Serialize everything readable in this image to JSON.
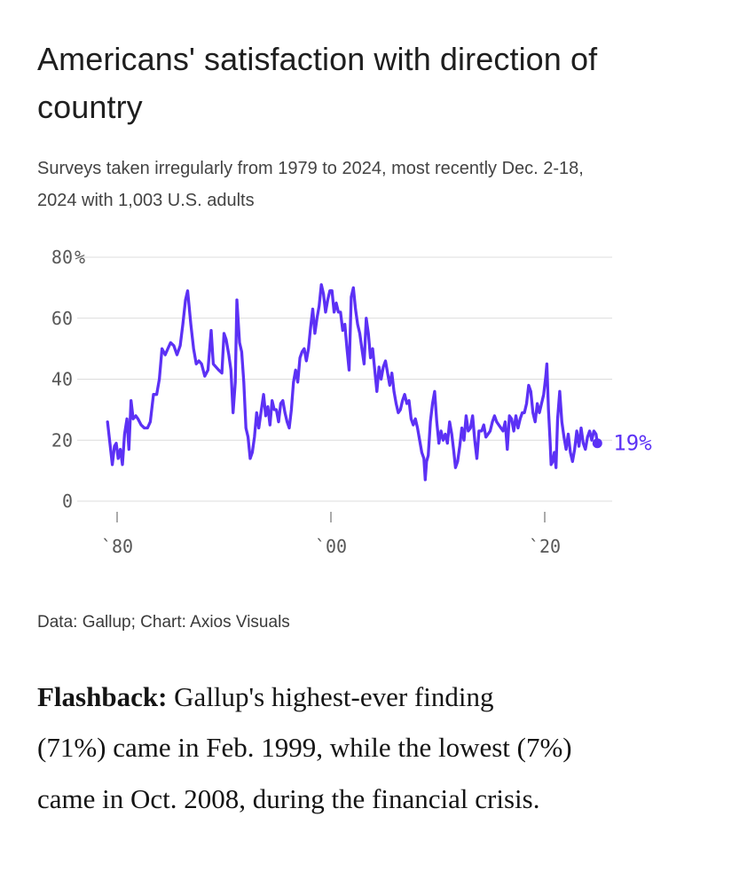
{
  "header": {
    "title": "Americans' satisfaction with direction of\ncountry",
    "subtitle": "Surveys taken irregularly from 1979 to 2024, most recently Dec. 2-18,\n2024 with 1,003 U.S. adults"
  },
  "chart_data": {
    "type": "line",
    "title": "Americans' satisfaction with direction of country",
    "unit": "%",
    "ylim": [
      0,
      80
    ],
    "x_range_years": [
      1979,
      2025
    ],
    "grid": true,
    "grid_color": "#dcdcdc",
    "tick_color": "#585858",
    "accent_color": "#5c31f5",
    "end_label": "19%",
    "end_value": 19,
    "y_ticks": [
      {
        "value": 80,
        "label": "80%"
      },
      {
        "value": 60,
        "label": "60"
      },
      {
        "value": 40,
        "label": "40"
      },
      {
        "value": 20,
        "label": "20"
      },
      {
        "value": 0,
        "label": "0"
      }
    ],
    "x_ticks": [
      {
        "value": 1980,
        "label": "`80"
      },
      {
        "value": 2000,
        "label": "`00"
      },
      {
        "value": 2020,
        "label": "`20"
      }
    ],
    "series": [
      {
        "name": "Satisfied with direction of country (%)",
        "color": "#5c31f5",
        "points": [
          [
            1979.1,
            26
          ],
          [
            1979.33,
            19
          ],
          [
            1979.55,
            12
          ],
          [
            1979.75,
            18
          ],
          [
            1979.92,
            19
          ],
          [
            1980.1,
            14
          ],
          [
            1980.3,
            17
          ],
          [
            1980.5,
            12
          ],
          [
            1980.7,
            22
          ],
          [
            1980.92,
            27
          ],
          [
            1981.1,
            17
          ],
          [
            1981.3,
            33
          ],
          [
            1981.5,
            27
          ],
          [
            1981.75,
            28
          ],
          [
            1981.95,
            27
          ],
          [
            1982.25,
            25
          ],
          [
            1982.55,
            24
          ],
          [
            1982.85,
            24
          ],
          [
            1983.1,
            26
          ],
          [
            1983.4,
            35
          ],
          [
            1983.7,
            35
          ],
          [
            1983.95,
            40
          ],
          [
            1984.2,
            50
          ],
          [
            1984.5,
            48
          ],
          [
            1984.75,
            50
          ],
          [
            1985.0,
            52
          ],
          [
            1985.3,
            51
          ],
          [
            1985.6,
            48
          ],
          [
            1985.9,
            51
          ],
          [
            1986.15,
            58
          ],
          [
            1986.4,
            66
          ],
          [
            1986.6,
            69
          ],
          [
            1986.9,
            58
          ],
          [
            1987.15,
            50
          ],
          [
            1987.4,
            45
          ],
          [
            1987.65,
            46
          ],
          [
            1987.9,
            45
          ],
          [
            1988.2,
            41
          ],
          [
            1988.5,
            43
          ],
          [
            1988.8,
            56
          ],
          [
            1989.0,
            45
          ],
          [
            1989.25,
            44
          ],
          [
            1989.5,
            43
          ],
          [
            1989.8,
            42
          ],
          [
            1990.0,
            55
          ],
          [
            1990.2,
            53
          ],
          [
            1990.45,
            48
          ],
          [
            1990.65,
            43
          ],
          [
            1990.85,
            29
          ],
          [
            1991.05,
            39
          ],
          [
            1991.2,
            66
          ],
          [
            1991.45,
            52
          ],
          [
            1991.65,
            49
          ],
          [
            1991.85,
            39
          ],
          [
            1992.05,
            24
          ],
          [
            1992.25,
            21
          ],
          [
            1992.45,
            14
          ],
          [
            1992.65,
            16
          ],
          [
            1992.85,
            21
          ],
          [
            1993.05,
            29
          ],
          [
            1993.25,
            24
          ],
          [
            1993.45,
            29
          ],
          [
            1993.7,
            35
          ],
          [
            1993.9,
            28
          ],
          [
            1994.1,
            31
          ],
          [
            1994.3,
            25
          ],
          [
            1994.5,
            33
          ],
          [
            1994.7,
            30
          ],
          [
            1994.9,
            30
          ],
          [
            1995.1,
            26
          ],
          [
            1995.3,
            32
          ],
          [
            1995.5,
            33
          ],
          [
            1995.7,
            29
          ],
          [
            1995.9,
            26
          ],
          [
            1996.1,
            24
          ],
          [
            1996.3,
            30
          ],
          [
            1996.5,
            39
          ],
          [
            1996.7,
            43
          ],
          [
            1996.9,
            39
          ],
          [
            1997.1,
            47
          ],
          [
            1997.3,
            49
          ],
          [
            1997.5,
            50
          ],
          [
            1997.7,
            46
          ],
          [
            1997.9,
            50
          ],
          [
            1998.1,
            57
          ],
          [
            1998.3,
            63
          ],
          [
            1998.5,
            55
          ],
          [
            1998.7,
            60
          ],
          [
            1998.9,
            64
          ],
          [
            1999.1,
            71
          ],
          [
            1999.3,
            68
          ],
          [
            1999.5,
            62
          ],
          [
            1999.7,
            66
          ],
          [
            1999.9,
            69
          ],
          [
            2000.1,
            69
          ],
          [
            2000.3,
            62
          ],
          [
            2000.5,
            65
          ],
          [
            2000.7,
            62
          ],
          [
            2000.9,
            62
          ],
          [
            2001.1,
            56
          ],
          [
            2001.3,
            58
          ],
          [
            2001.5,
            50
          ],
          [
            2001.7,
            43
          ],
          [
            2001.9,
            67
          ],
          [
            2002.1,
            70
          ],
          [
            2002.3,
            63
          ],
          [
            2002.5,
            58
          ],
          [
            2002.7,
            55
          ],
          [
            2002.9,
            50
          ],
          [
            2003.1,
            45
          ],
          [
            2003.3,
            60
          ],
          [
            2003.5,
            55
          ],
          [
            2003.7,
            47
          ],
          [
            2003.9,
            50
          ],
          [
            2004.1,
            43
          ],
          [
            2004.3,
            36
          ],
          [
            2004.5,
            44
          ],
          [
            2004.7,
            40
          ],
          [
            2004.9,
            44
          ],
          [
            2005.1,
            46
          ],
          [
            2005.3,
            42
          ],
          [
            2005.5,
            38
          ],
          [
            2005.7,
            42
          ],
          [
            2005.9,
            36
          ],
          [
            2006.1,
            32
          ],
          [
            2006.3,
            29
          ],
          [
            2006.5,
            30
          ],
          [
            2006.7,
            33
          ],
          [
            2006.9,
            35
          ],
          [
            2007.1,
            32
          ],
          [
            2007.3,
            33
          ],
          [
            2007.5,
            27
          ],
          [
            2007.7,
            25
          ],
          [
            2007.9,
            27
          ],
          [
            2008.1,
            24
          ],
          [
            2008.3,
            20
          ],
          [
            2008.5,
            16
          ],
          [
            2008.7,
            14
          ],
          [
            2008.82,
            7
          ],
          [
            2008.95,
            13
          ],
          [
            2009.1,
            15
          ],
          [
            2009.3,
            26
          ],
          [
            2009.5,
            32
          ],
          [
            2009.7,
            36
          ],
          [
            2009.9,
            26
          ],
          [
            2010.1,
            19
          ],
          [
            2010.3,
            23
          ],
          [
            2010.5,
            20
          ],
          [
            2010.7,
            22
          ],
          [
            2010.9,
            19
          ],
          [
            2011.1,
            26
          ],
          [
            2011.3,
            22
          ],
          [
            2011.5,
            16
          ],
          [
            2011.65,
            11
          ],
          [
            2011.85,
            13
          ],
          [
            2012.05,
            18
          ],
          [
            2012.25,
            24
          ],
          [
            2012.45,
            20
          ],
          [
            2012.65,
            28
          ],
          [
            2012.85,
            23
          ],
          [
            2013.05,
            24
          ],
          [
            2013.25,
            28
          ],
          [
            2013.45,
            20
          ],
          [
            2013.65,
            14
          ],
          [
            2013.85,
            23
          ],
          [
            2014.1,
            23
          ],
          [
            2014.3,
            25
          ],
          [
            2014.5,
            21
          ],
          [
            2014.7,
            22
          ],
          [
            2014.9,
            23
          ],
          [
            2015.1,
            26
          ],
          [
            2015.3,
            28
          ],
          [
            2015.5,
            26
          ],
          [
            2015.7,
            25
          ],
          [
            2015.9,
            24
          ],
          [
            2016.1,
            23
          ],
          [
            2016.3,
            26
          ],
          [
            2016.5,
            17
          ],
          [
            2016.7,
            28
          ],
          [
            2016.9,
            27
          ],
          [
            2017.1,
            23
          ],
          [
            2017.3,
            28
          ],
          [
            2017.5,
            24
          ],
          [
            2017.7,
            27
          ],
          [
            2017.9,
            29
          ],
          [
            2018.1,
            29
          ],
          [
            2018.3,
            32
          ],
          [
            2018.5,
            38
          ],
          [
            2018.7,
            36
          ],
          [
            2018.9,
            29
          ],
          [
            2019.1,
            26
          ],
          [
            2019.3,
            32
          ],
          [
            2019.5,
            29
          ],
          [
            2019.7,
            32
          ],
          [
            2019.9,
            35
          ],
          [
            2020.1,
            41
          ],
          [
            2020.2,
            45
          ],
          [
            2020.35,
            30
          ],
          [
            2020.5,
            20
          ],
          [
            2020.6,
            12
          ],
          [
            2020.75,
            13
          ],
          [
            2020.9,
            16
          ],
          [
            2021.05,
            11
          ],
          [
            2021.2,
            27
          ],
          [
            2021.4,
            36
          ],
          [
            2021.6,
            26
          ],
          [
            2021.8,
            21
          ],
          [
            2022.0,
            17
          ],
          [
            2022.2,
            22
          ],
          [
            2022.4,
            16
          ],
          [
            2022.6,
            13
          ],
          [
            2022.8,
            17
          ],
          [
            2023.0,
            23
          ],
          [
            2023.2,
            18
          ],
          [
            2023.4,
            24
          ],
          [
            2023.6,
            19
          ],
          [
            2023.8,
            17
          ],
          [
            2024.0,
            21
          ],
          [
            2024.2,
            23
          ],
          [
            2024.4,
            20
          ],
          [
            2024.6,
            23
          ],
          [
            2024.8,
            22
          ],
          [
            2024.92,
            19
          ]
        ]
      }
    ]
  },
  "footer": {
    "credit": "Data: Gallup; Chart: Axios Visuals"
  },
  "article": {
    "flashback_label": "Flashback:",
    "flashback_text": " Gallup's highest-ever finding\n(71%) came in Feb. 1999, while the lowest (7%)\ncame in Oct. 2008, during the financial crisis."
  }
}
